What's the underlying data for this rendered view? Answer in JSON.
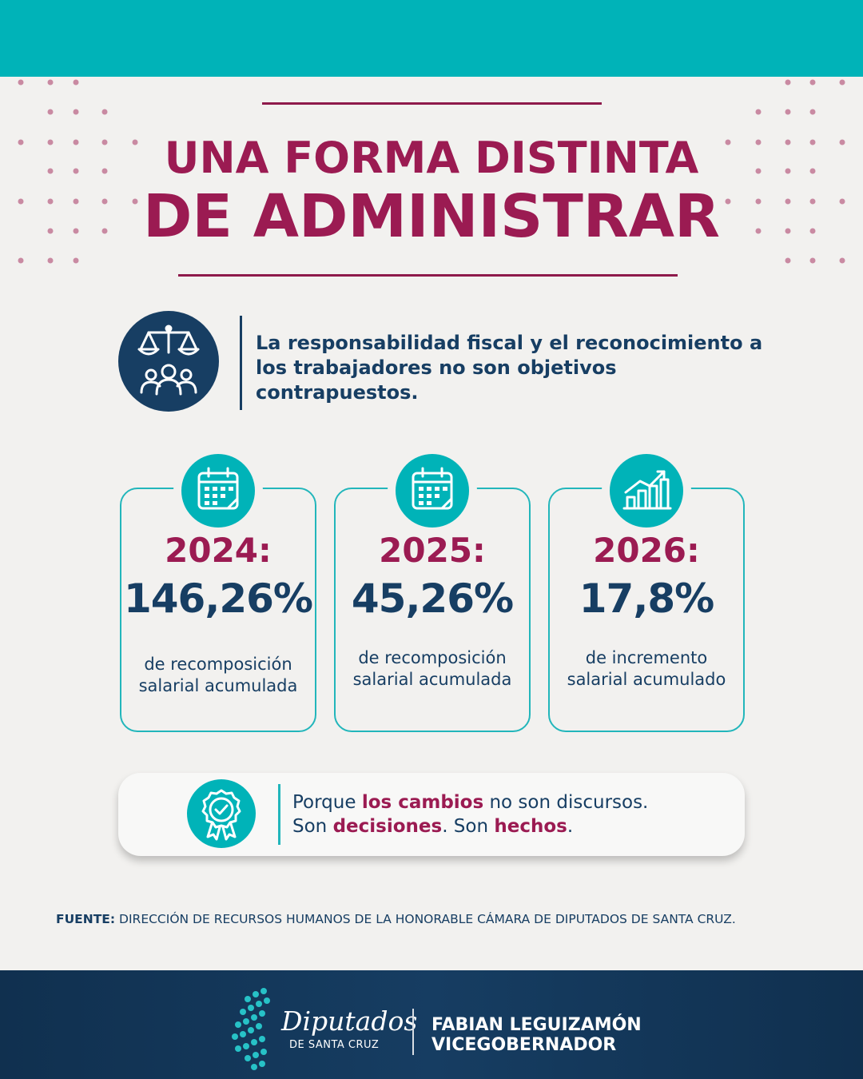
{
  "header": {
    "title_line1": "UNA FORMA DISTINTA",
    "title_line2": "DE ADMINISTRAR"
  },
  "intro": {
    "icon": "scale-and-people-icon",
    "text": "La responsabilidad fiscal y el reconocimiento a los trabajadores no son objetivos contrapuestos."
  },
  "cards": [
    {
      "icon": "calendar-icon",
      "year": "2024:",
      "value": "146,26%",
      "desc_line1": "de recomposición",
      "desc_line2": "salarial acumulada"
    },
    {
      "icon": "calendar-icon",
      "year": "2025:",
      "value": "45,26%",
      "desc_line1": "de recomposición",
      "desc_line2": "salarial acumulada"
    },
    {
      "icon": "growth-chart-icon",
      "year": "2026:",
      "value": "17,8%",
      "desc_line1": "de incremento",
      "desc_line2": "salarial acumulado"
    }
  ],
  "quote": {
    "icon": "award-badge-icon",
    "l1_a": "Porque ",
    "l1_b": "los cambios",
    "l1_c": " no son discursos.",
    "l2_a": "Son ",
    "l2_b": "decisiones",
    "l2_c": ". Son ",
    "l2_d": "hechos",
    "l2_e": "."
  },
  "source": {
    "label": "FUENTE:",
    "text": " DIRECCIÓN DE RECURSOS HUMANOS DE LA HONORABLE CÁMARA DE DIPUTADOS DE SANTA CRUZ."
  },
  "footer": {
    "logo_word": "Diputados",
    "logo_sub": "DE SANTA CRUZ",
    "name_line1": "FABIAN LEGUIZAMÓN",
    "name_line2": "VICEGOBERNADOR"
  },
  "colors": {
    "teal": "#00b3b8",
    "navy": "#173e63",
    "maroon": "#9b1b52",
    "background": "#f2f1ef"
  }
}
